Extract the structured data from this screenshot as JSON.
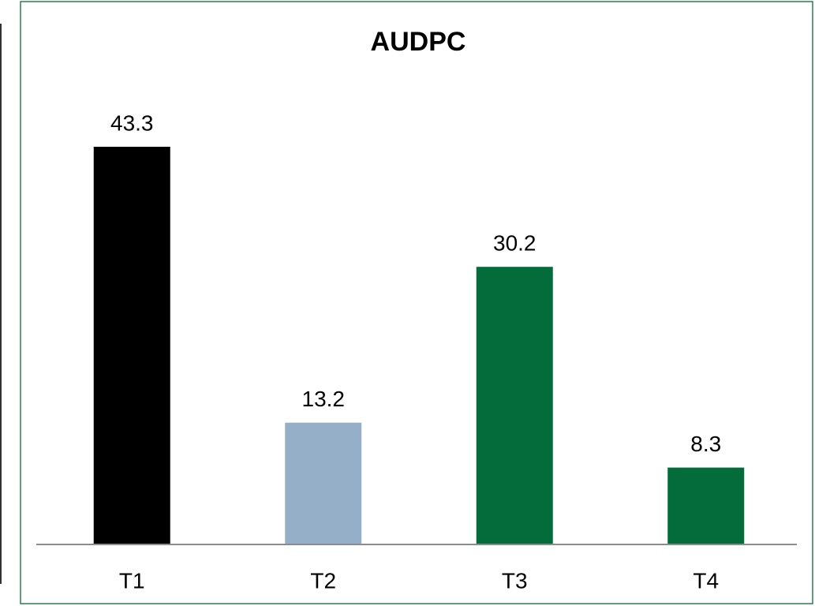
{
  "chart_data": {
    "type": "bar",
    "title": "AUDPC",
    "categories": [
      "T1",
      "T2",
      "T3",
      "T4"
    ],
    "values": [
      43.3,
      13.2,
      30.2,
      8.3
    ],
    "colors": [
      "#000000",
      "#95afc9",
      "#046b3a",
      "#046b3a"
    ]
  }
}
